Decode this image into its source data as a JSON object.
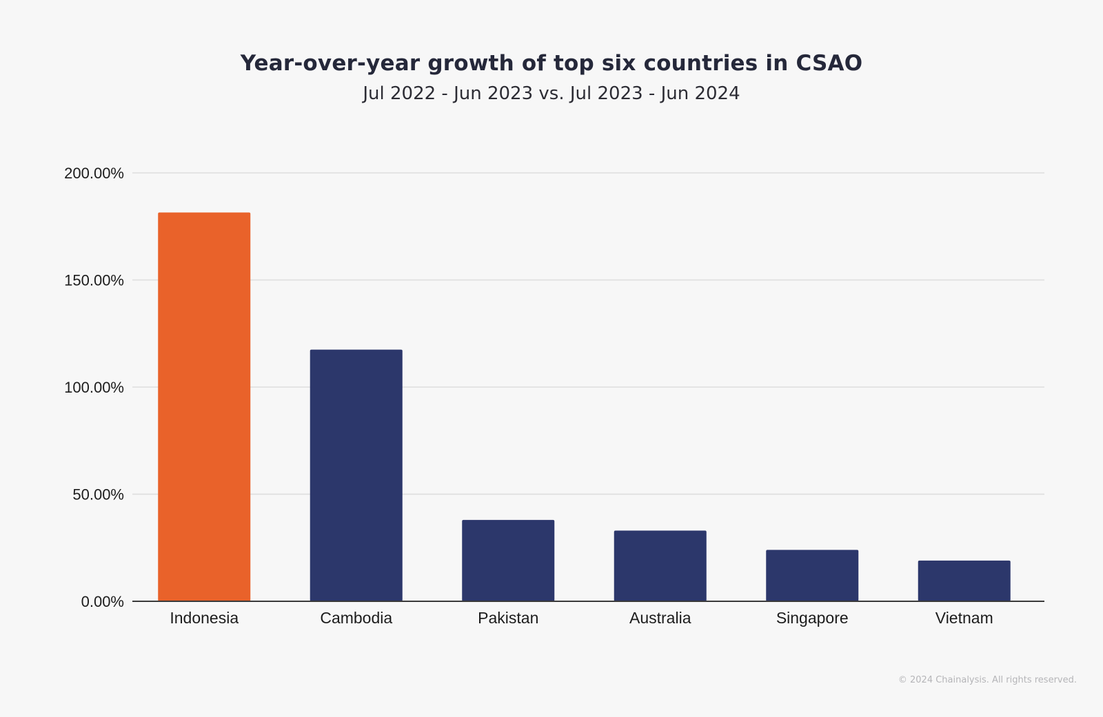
{
  "chart_data": {
    "type": "bar",
    "title": "Year-over-year growth of top six countries in CSAO",
    "subtitle": "Jul 2022 - Jun 2023 vs. Jul 2023 - Jun 2024",
    "categories": [
      "Indonesia",
      "Cambodia",
      "Pakistan",
      "Australia",
      "Singapore",
      "Vietnam"
    ],
    "values": [
      181.5,
      117.5,
      38,
      33,
      24,
      19
    ],
    "bar_colors": [
      "#e9622a",
      "#2c376b",
      "#2c376b",
      "#2c376b",
      "#2c376b",
      "#2c376b"
    ],
    "ylim": [
      0,
      200
    ],
    "yticks": [
      0,
      50,
      100,
      150,
      200
    ],
    "ytick_labels": [
      "0.00%",
      "50.00%",
      "100.00%",
      "150.00%",
      "200.00%"
    ],
    "xlabel": "",
    "ylabel": "",
    "grid": true,
    "grid_color": "#dddddd",
    "axis_color": "#3a3a3a"
  },
  "footer": {
    "copyright": "© 2024 Chainalysis. All rights reserved."
  }
}
